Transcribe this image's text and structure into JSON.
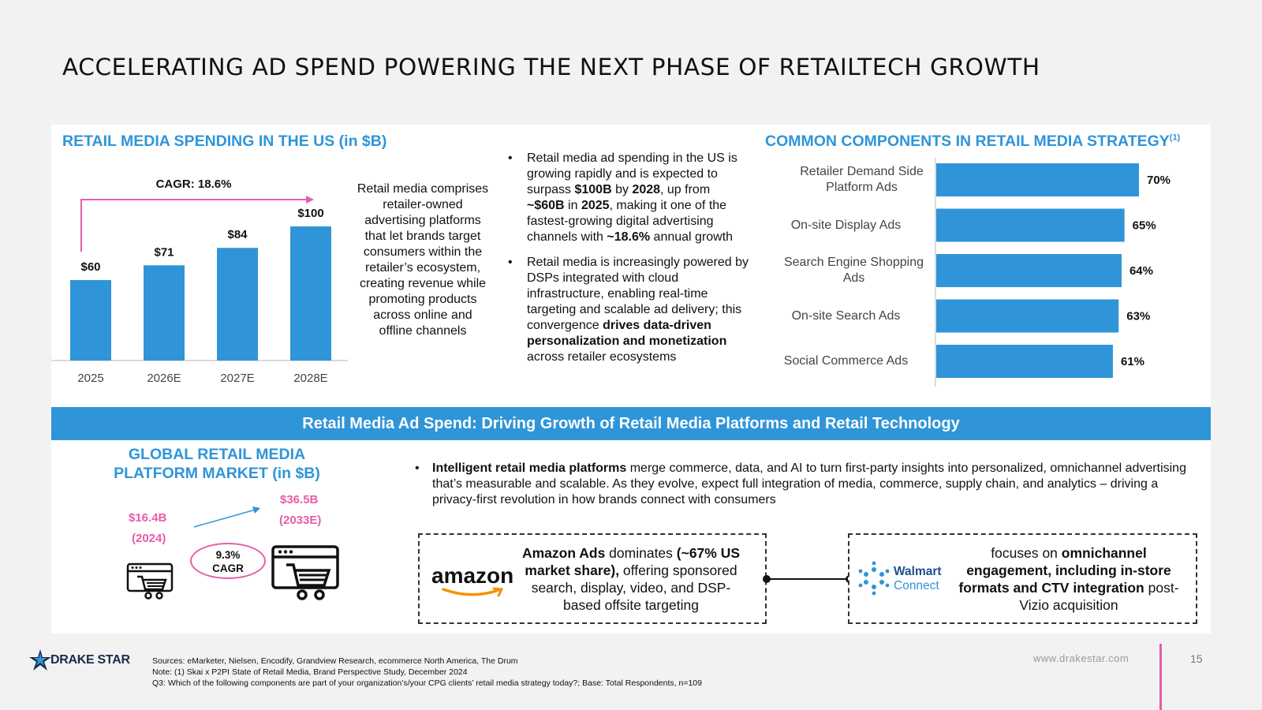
{
  "page": {
    "title": "ACCELERATING AD SPEND POWERING THE NEXT PHASE OF RETAILTECH GROWTH",
    "page_number": "15",
    "url": "www.drakestar.com",
    "brand": "DRAKE STAR"
  },
  "colors": {
    "accent": "#2f95d8",
    "pink": "#e85da8"
  },
  "us_spending": {
    "heading": "RETAIL MEDIA SPENDING IN THE US (in $B)",
    "cagr_label": "CAGR: 18.6%"
  },
  "blurb": "Retail media comprises retailer-owned advertising platforms that let brands target consumers within the retailer’s ecosystem, creating revenue while promoting products across online and offline channels",
  "bullets": [
    [
      "Retail media ad spending in the US is growing rapidly and is expected to surpass ",
      "$100B",
      " by ",
      "2028",
      ", up from ",
      "~$60B",
      " in ",
      "2025",
      ", making it one of the fastest-growing digital advertising channels with ",
      "~18.6%",
      " annual growth"
    ],
    [
      "Retail media is increasingly powered by DSPs integrated with cloud infrastructure, enabling real-time targeting and scalable ad delivery; this convergence ",
      "drives data-driven personalization and monetization",
      " across retailer ecosystems"
    ]
  ],
  "components": {
    "heading": "COMMON COMPONENTS IN RETAIL MEDIA STRATEGY",
    "heading_sup": "(1)"
  },
  "chart_data": [
    {
      "type": "bar",
      "title": "RETAIL MEDIA SPENDING IN THE US (in $B)",
      "categories": [
        "2025",
        "2026E",
        "2027E",
        "2028E"
      ],
      "values": [
        60,
        71,
        84,
        100
      ],
      "value_labels": [
        "$60",
        "$71",
        "$84",
        "$100"
      ],
      "ylim": [
        0,
        100
      ],
      "annotation": "CAGR: 18.6%",
      "grid": false
    },
    {
      "type": "bar",
      "orientation": "horizontal",
      "title": "COMMON COMPONENTS IN RETAIL MEDIA STRATEGY",
      "categories": [
        "Retailer Demand Side Platform Ads",
        "On-site Display Ads",
        "Search Engine Shopping Ads",
        "On-site Search Ads",
        "Social Commerce Ads"
      ],
      "values": [
        70,
        65,
        64,
        63,
        61
      ],
      "value_labels": [
        "70%",
        "65%",
        "64%",
        "63%",
        "61%"
      ],
      "xlim": [
        0,
        70
      ],
      "grid": false
    }
  ],
  "band": {
    "text": "Retail Media Ad Spend: Driving Growth of Retail Media Platforms and Retail Technology"
  },
  "global_market": {
    "heading": "GLOBAL RETAIL MEDIA PLATFORM MARKET (in $B)",
    "start_value": "$16.4B",
    "start_year": "(2024)",
    "end_value": "$36.5B",
    "end_year": "(2033E)",
    "cagr_value": "9.3%",
    "cagr_label": "CAGR"
  },
  "intelligent": {
    "bold": "Intelligent retail media platforms",
    "rest": " merge commerce, data, and AI to turn first-party insights into personalized, omnichannel advertising that’s measurable and scalable. As they evolve, expect full integration of media, commerce, supply chain, and analytics – driving a privacy-first revolution in how brands connect with consumers"
  },
  "amazon_box": {
    "logo_text": "amazon",
    "parts": [
      "Amazon Ads",
      " dominates ",
      "(~67% US market share),",
      " offering sponsored search, display, video, and DSP-based offsite targeting"
    ]
  },
  "walmart_box": {
    "logo_line1": "Walmart",
    "logo_line2": "Connect",
    "parts": [
      "focuses on ",
      "omnichannel engagement, including in-store formats and CTV integration",
      " post-Vizio acquisition"
    ]
  },
  "footer": {
    "sources": "Sources: eMarketer, Nielsen, Encodify, Grandview Research, ecommerce North America, The Drum",
    "note": "Note: (1) Skai x P2PI State of Retail Media, Brand Perspective Study, December 2024",
    "q3": "Q3: Which of the following components are part of your organization’s/your CPG clients’ retail media strategy today?; Base: Total Respondents, n=109"
  }
}
